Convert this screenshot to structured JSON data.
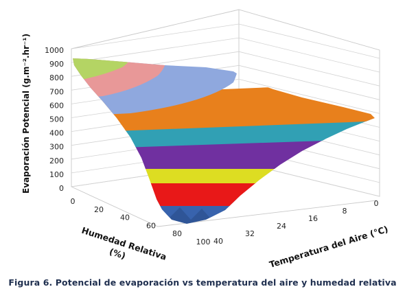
{
  "caption": "Figura 6. Potencial de evaporación vs temperatura del aire y humedad relativa",
  "chart_data": {
    "type": "surface",
    "zlabel": "Evaporación Potencial (g.m⁻².hr⁻¹)",
    "ylabel": "Humedad Relativa (%)",
    "xlabel": "Temperatura del Aire (°C)",
    "zlim": [
      0,
      1000
    ],
    "z_ticks": [
      "0",
      "100",
      "200",
      "300",
      "400",
      "500",
      "600",
      "700",
      "800",
      "900",
      "1000"
    ],
    "humidity_ticks": [
      "0",
      "20",
      "40",
      "60",
      "80",
      "100"
    ],
    "temperature_ticks": [
      "0",
      "8",
      "16",
      "24",
      "32",
      "40"
    ],
    "humidity_values": [
      0,
      20,
      40,
      60,
      80,
      100
    ],
    "temperature_values": [
      0,
      8,
      16,
      24,
      32,
      40
    ],
    "grid": true,
    "color_bands": [
      {
        "range": [
          0,
          100
        ],
        "color": "#2f5597"
      },
      {
        "range": [
          100,
          200
        ],
        "color": "#e81818"
      },
      {
        "range": [
          200,
          300
        ],
        "color": "#dddd22"
      },
      {
        "range": [
          300,
          400
        ],
        "color": "#7030a0"
      },
      {
        "range": [
          400,
          500
        ],
        "color": "#31a0b4"
      },
      {
        "range": [
          500,
          700
        ],
        "color": "#e8801c"
      },
      {
        "range": [
          700,
          800
        ],
        "color": "#8fa8de"
      },
      {
        "range": [
          800,
          900
        ],
        "color": "#e89898"
      },
      {
        "range": [
          900,
          1000
        ],
        "color": "#b4d464"
      }
    ]
  }
}
